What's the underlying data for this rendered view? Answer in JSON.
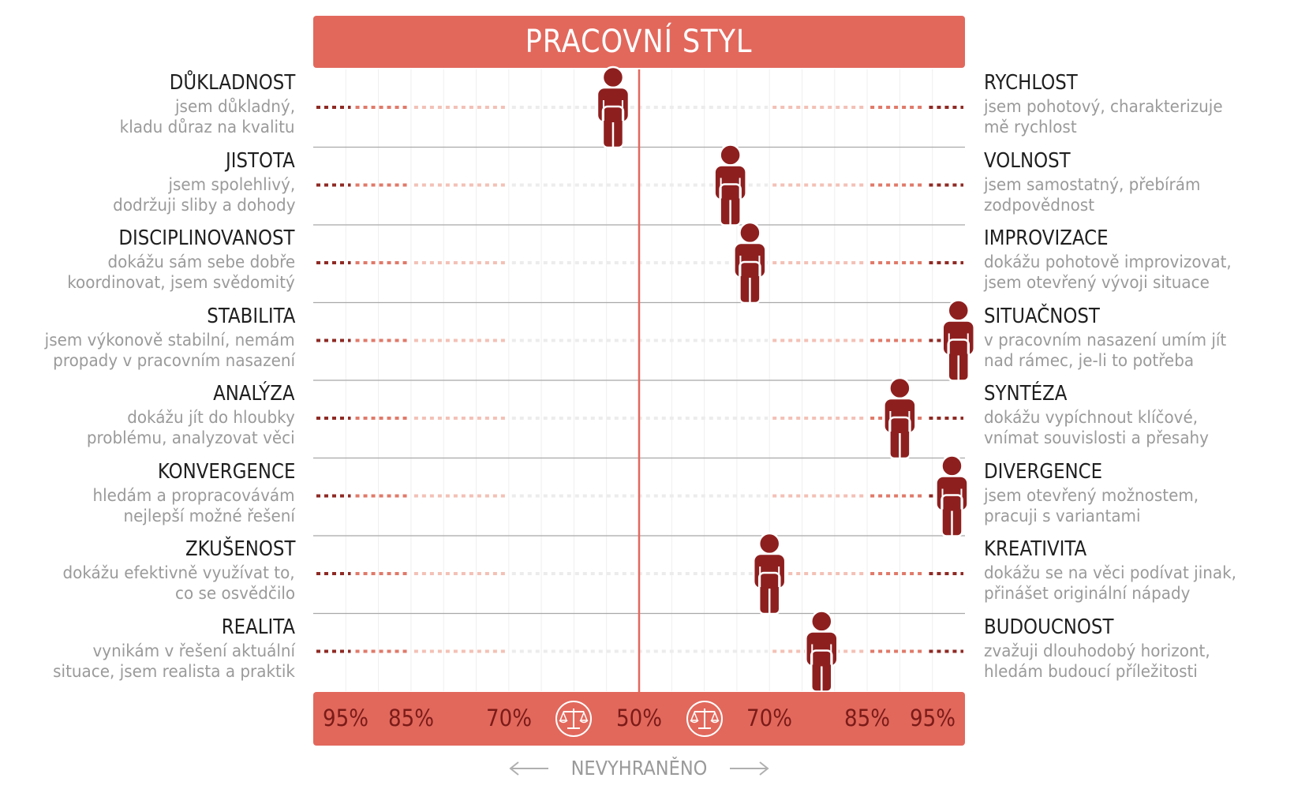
{
  "title": "PRACOVNÍ STYL",
  "colors": {
    "header_bg": "#e2685c",
    "figure": "#8e1f1f",
    "dot_dark": "#8e2a24",
    "dot_mid": "#e07a6a",
    "dot_light": "#f3c1b6",
    "dot_faint": "#ececec",
    "center_line": "#e2685c",
    "separator": "#a8a8a8"
  },
  "rows": [
    {
      "left_title": "DŮKLADNOST",
      "left_desc": [
        "jsem důkladný,",
        "kladu důraz na kvalitu"
      ],
      "right_title": "RYCHLOST",
      "right_desc": [
        "jsem pohotový, charakterizuje",
        "mě rychlost"
      ]
    },
    {
      "left_title": "JISTOTA",
      "left_desc": [
        "jsem spolehlivý,",
        "dodržuji sliby a dohody"
      ],
      "right_title": "VOLNOST",
      "right_desc": [
        "jsem samostatný, přebírám",
        "zodpovědnost"
      ]
    },
    {
      "left_title": "DISCIPLINOVANOST",
      "left_desc": [
        "dokážu sám sebe dobře",
        "koordinovat, jsem svědomitý"
      ],
      "right_title": "IMPROVIZACE",
      "right_desc": [
        "dokážu pohotově improvizovat,",
        "jsem otevřený vývoji situace"
      ]
    },
    {
      "left_title": "STABILITA",
      "left_desc": [
        "jsem výkonově stabilní, nemám",
        "propady v pracovním nasazení"
      ],
      "right_title": "SITUAČNOST",
      "right_desc": [
        "v pracovním nasazení umím jít",
        "nad rámec, je-li to potřeba"
      ]
    },
    {
      "left_title": "ANALÝZA",
      "left_desc": [
        "dokážu jít do hloubky",
        "problému, analyzovat věci"
      ],
      "right_title": "SYNTÉZA",
      "right_desc": [
        "dokážu vypíchnout klíčové,",
        "vnímat souvislosti a přesahy"
      ]
    },
    {
      "left_title": "KONVERGENCE",
      "left_desc": [
        "hledám a propracovávám",
        "nejlepší možné řešení"
      ],
      "right_title": "DIVERGENCE",
      "right_desc": [
        "jsem otevřený možnostem,",
        "pracuji s variantami"
      ]
    },
    {
      "left_title": "ZKUŠENOST",
      "left_desc": [
        "dokážu efektivně využívat to,",
        "co se osvědčilo"
      ],
      "right_title": "KREATIVITA",
      "right_desc": [
        "dokážu se na věci podívat jinak,",
        "přinášet originální nápady"
      ]
    },
    {
      "left_title": "REALITA",
      "left_desc": [
        "vynikám v řešení aktuální",
        "situace, jsem realista a praktik"
      ],
      "right_title": "BUDOUCNOST",
      "right_desc": [
        "zvažuji dlouhodobý horizont,",
        "hledám budoucí příležitosti"
      ]
    }
  ],
  "axis": {
    "ticks": [
      "95%",
      "85%",
      "70%",
      "50%",
      "70%",
      "85%",
      "95%"
    ],
    "tick_positions": [
      -45,
      -35,
      -20,
      0,
      20,
      35,
      45
    ],
    "neutral_label": "NEVYHRANĚNO",
    "neutral_range": [
      -20,
      20
    ]
  },
  "chart_data": {
    "type": "scatter",
    "title": "PRACOVNÍ STYL",
    "xlabel": "",
    "ylabel": "",
    "x_axis_ticks": [
      "95%",
      "85%",
      "70%",
      "50%",
      "70%",
      "85%",
      "95%"
    ],
    "x_range": [
      -50,
      50
    ],
    "categories_left": [
      "DŮKLADNOST",
      "JISTOTA",
      "DISCIPLINOVANOST",
      "STABILITA",
      "ANALÝZA",
      "KONVERGENCE",
      "ZKUŠENOST",
      "REALITA"
    ],
    "categories_right": [
      "RYCHLOST",
      "VOLNOST",
      "IMPROVIZACE",
      "SITUAČNOST",
      "SYNTÉZA",
      "DIVERGENCE",
      "KREATIVITA",
      "BUDOUCNOST"
    ],
    "values": [
      -4,
      14,
      17,
      49,
      40,
      48,
      20,
      28
    ],
    "value_note_scale": "signed offset from 50% toward the right-hand trait, in percentage points",
    "grid": true
  }
}
